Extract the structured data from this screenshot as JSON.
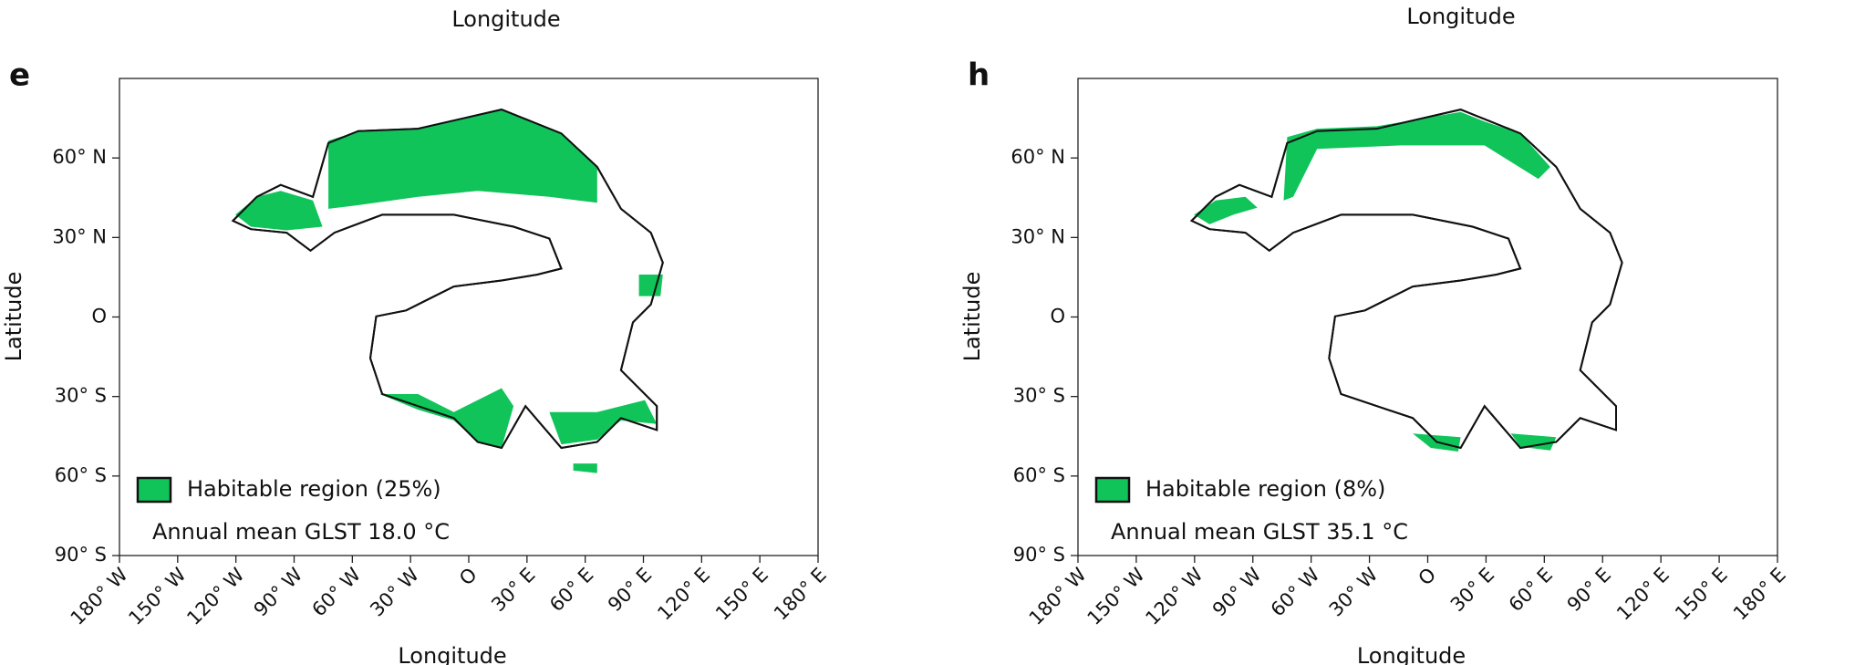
{
  "top_labels": [
    "Longitude",
    "Longitude"
  ],
  "panels": [
    {
      "letter": "e",
      "xlabel": "Longitude",
      "ylabel": "Latitude",
      "xlim": [
        -180,
        180
      ],
      "ylim": [
        -90,
        90
      ],
      "xticks": [
        {
          "value": -180,
          "label": "180° W"
        },
        {
          "value": -150,
          "label": "150° W"
        },
        {
          "value": -120,
          "label": "120° W"
        },
        {
          "value": -90,
          "label": "90° W"
        },
        {
          "value": -60,
          "label": "60° W"
        },
        {
          "value": -30,
          "label": "30° W"
        },
        {
          "value": 0,
          "label": "O"
        },
        {
          "value": 30,
          "label": "30° E"
        },
        {
          "value": 60,
          "label": "60° E"
        },
        {
          "value": 90,
          "label": "90° E"
        },
        {
          "value": 120,
          "label": "120° E"
        },
        {
          "value": 150,
          "label": "150° E"
        },
        {
          "value": 180,
          "label": "180° E"
        }
      ],
      "yticks": [
        {
          "value": -90,
          "label": "90° S"
        },
        {
          "value": -60,
          "label": "60° S"
        },
        {
          "value": -30,
          "label": "30° S"
        },
        {
          "value": 0,
          "label": "O"
        },
        {
          "value": 30,
          "label": "30° N"
        },
        {
          "value": 60,
          "label": "60° N"
        }
      ],
      "legend": "Habitable region (25%)",
      "annotation": "Annual mean GLST 18.0 °C",
      "color": "#10c45a"
    },
    {
      "letter": "h",
      "xlabel": "Longitude",
      "ylabel": "Latitude",
      "xlim": [
        -180,
        180
      ],
      "ylim": [
        -90,
        90
      ],
      "xticks": [
        {
          "value": -180,
          "label": "180° W"
        },
        {
          "value": -150,
          "label": "150° W"
        },
        {
          "value": -120,
          "label": "120° W"
        },
        {
          "value": -90,
          "label": "90° W"
        },
        {
          "value": -60,
          "label": "60° W"
        },
        {
          "value": -30,
          "label": "30° W"
        },
        {
          "value": 0,
          "label": "O"
        },
        {
          "value": 30,
          "label": "30° E"
        },
        {
          "value": 60,
          "label": "60° E"
        },
        {
          "value": 90,
          "label": "90° E"
        },
        {
          "value": 120,
          "label": "120° E"
        },
        {
          "value": 150,
          "label": "150° E"
        },
        {
          "value": 180,
          "label": "180° E"
        }
      ],
      "yticks": [
        {
          "value": -90,
          "label": "90° S"
        },
        {
          "value": -60,
          "label": "60° S"
        },
        {
          "value": -30,
          "label": "30° S"
        },
        {
          "value": 0,
          "label": "O"
        },
        {
          "value": 30,
          "label": "30° N"
        },
        {
          "value": 60,
          "label": "60° N"
        }
      ],
      "legend": "Habitable region (8%)",
      "annotation": "Annual mean GLST 35.1 °C",
      "color": "#10c45a"
    }
  ]
}
